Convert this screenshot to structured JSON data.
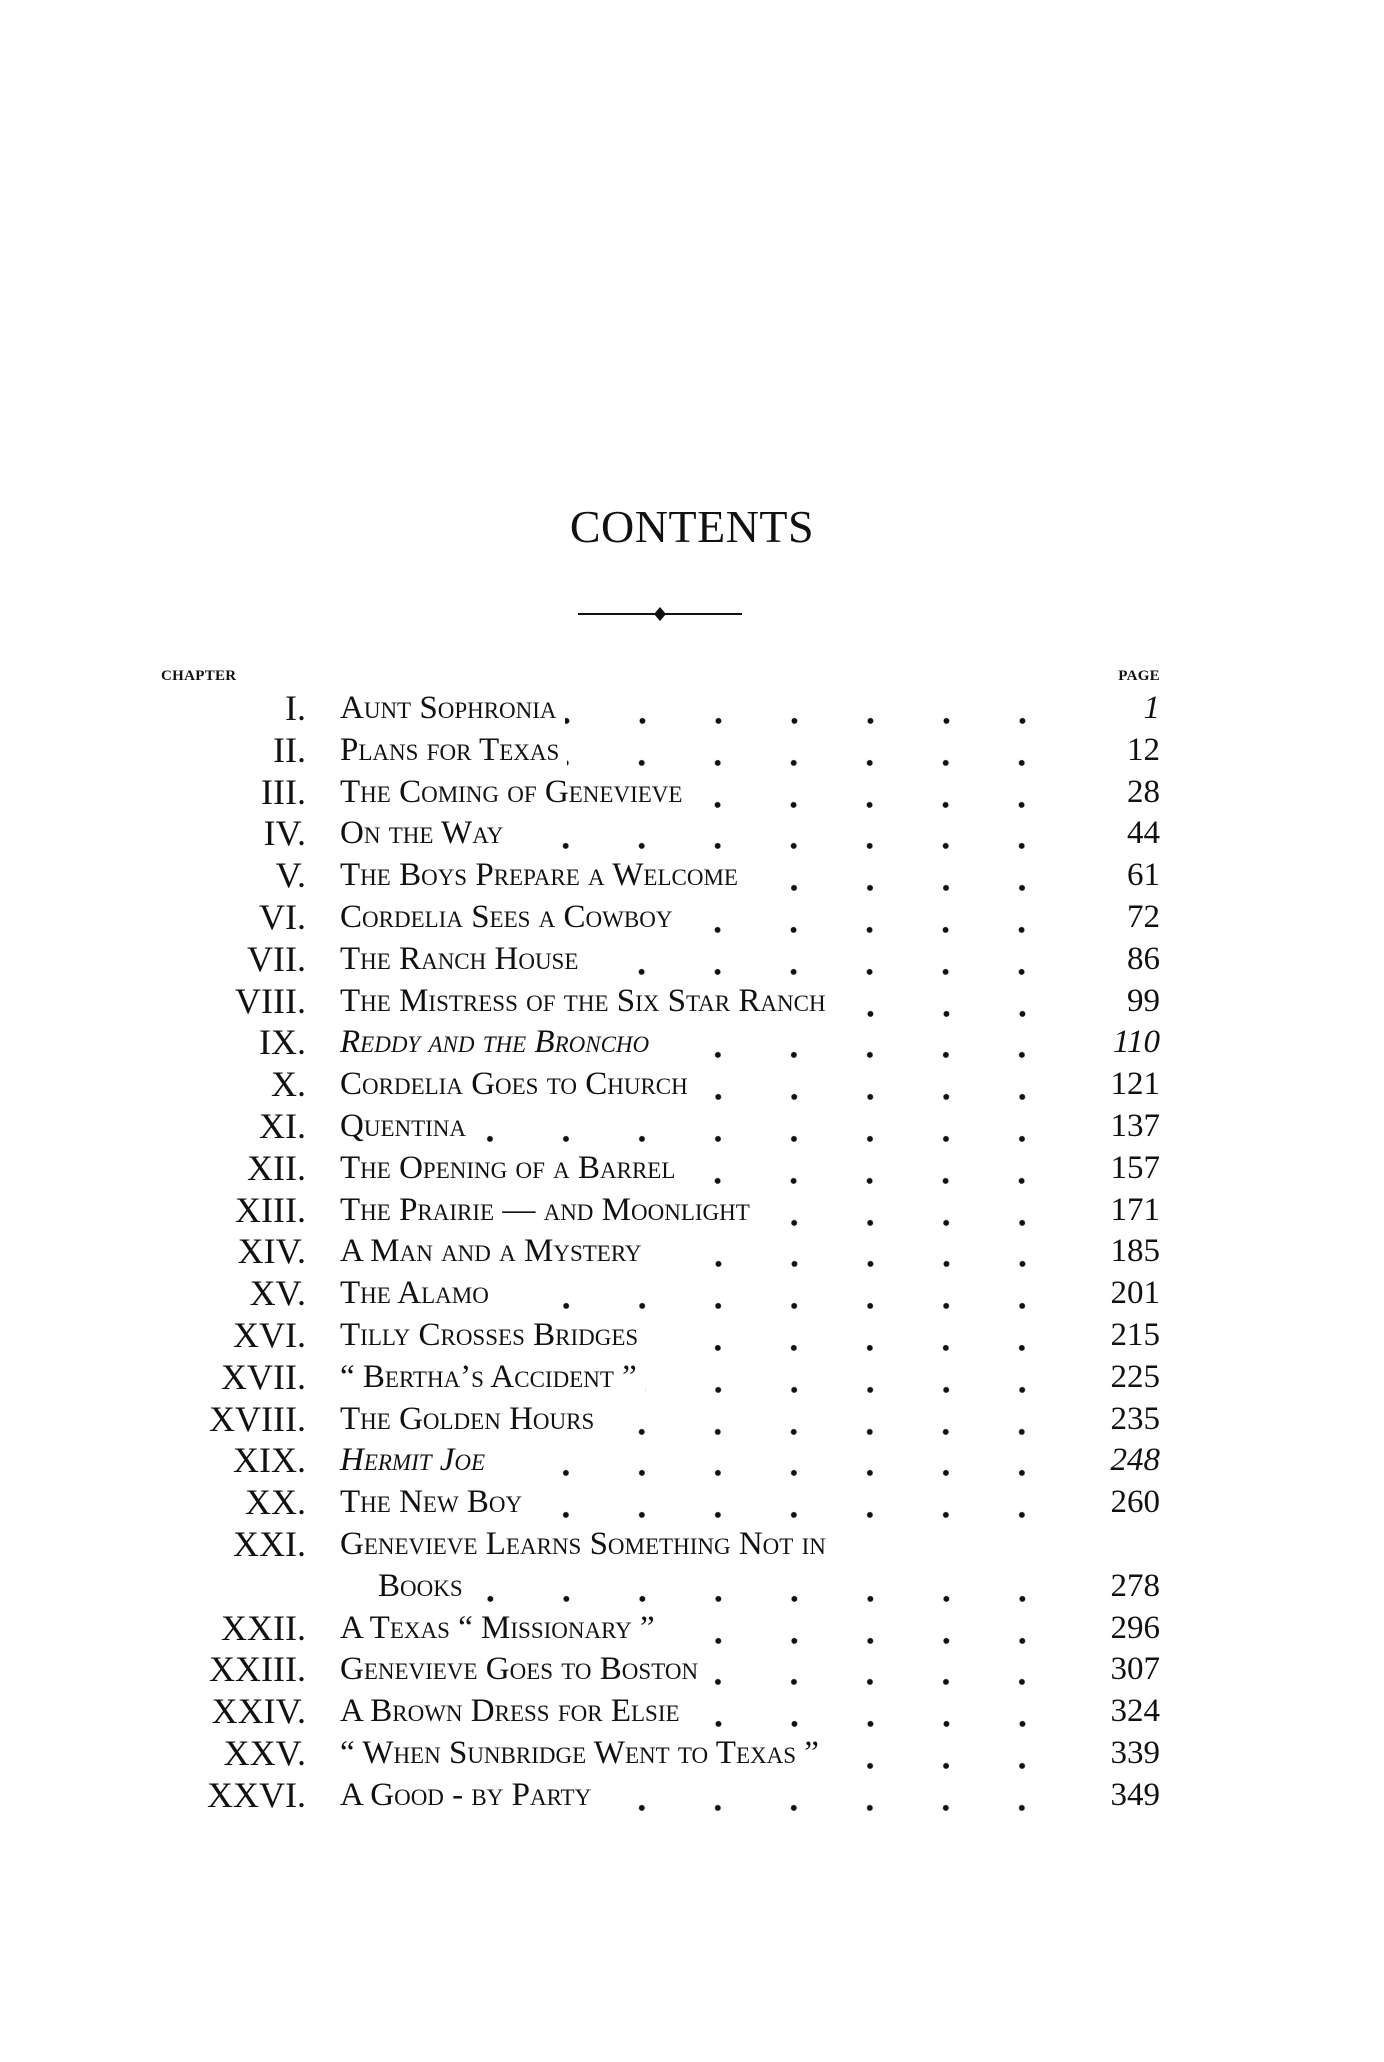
{
  "title": "CONTENTS",
  "column_headers": {
    "chapter": "CHAPTER",
    "page": "PAGE"
  },
  "chapters": [
    {
      "num": "I.",
      "title": "Aunt Sophronia",
      "page": "1"
    },
    {
      "num": "II.",
      "title": "Plans for Texas",
      "page": "12"
    },
    {
      "num": "III.",
      "title": "The Coming of Genevieve",
      "page": "28"
    },
    {
      "num": "IV.",
      "title": "On the Way",
      "page": "44"
    },
    {
      "num": "V.",
      "title": "The Boys Prepare a Welcome",
      "page": "61"
    },
    {
      "num": "VI.",
      "title": "Cordelia Sees a Cowboy",
      "page": "72"
    },
    {
      "num": "VII.",
      "title": "The Ranch House",
      "page": "86"
    },
    {
      "num": "VIII.",
      "title": "The Mistress of the Six Star Ranch",
      "page": "99"
    },
    {
      "num": "IX.",
      "title": "Reddy and the Broncho",
      "page": "110"
    },
    {
      "num": "X.",
      "title": "Cordelia Goes to Church",
      "page": "121"
    },
    {
      "num": "XI.",
      "title": "Quentina",
      "page": "137"
    },
    {
      "num": "XII.",
      "title": "The Opening of a Barrel",
      "page": "157"
    },
    {
      "num": "XIII.",
      "title": "The Prairie — and Moonlight",
      "page": "171"
    },
    {
      "num": "XIV.",
      "title": "A Man and a Mystery",
      "page": "185"
    },
    {
      "num": "XV.",
      "title": "The Alamo",
      "page": "201"
    },
    {
      "num": "XVI.",
      "title": "Tilly Crosses Bridges",
      "page": "215"
    },
    {
      "num": "XVII.",
      "title": "“ Bertha’s Accident ”",
      "page": "225"
    },
    {
      "num": "XVIII.",
      "title": "The Golden Hours",
      "page": "235"
    },
    {
      "num": "XIX.",
      "title": "Hermit Joe",
      "page": "248"
    },
    {
      "num": "XX.",
      "title": "The New Boy",
      "page": "260"
    },
    {
      "num": "XXI.",
      "title": "Genevieve Learns Something Not in",
      "title_cont": "Books",
      "page": "278"
    },
    {
      "num": "XXII.",
      "title": "A Texas “ Missionary ”",
      "page": "296"
    },
    {
      "num": "XXIII.",
      "title": "Genevieve Goes to Boston",
      "page": "307"
    },
    {
      "num": "XXIV.",
      "title": "A Brown Dress for Elsie",
      "page": "324"
    },
    {
      "num": "XXV.",
      "title": "“ When Sunbridge Went to Texas ”",
      "page": "339"
    },
    {
      "num": "XXVI.",
      "title": "A Good - by Party",
      "page": "349"
    }
  ]
}
